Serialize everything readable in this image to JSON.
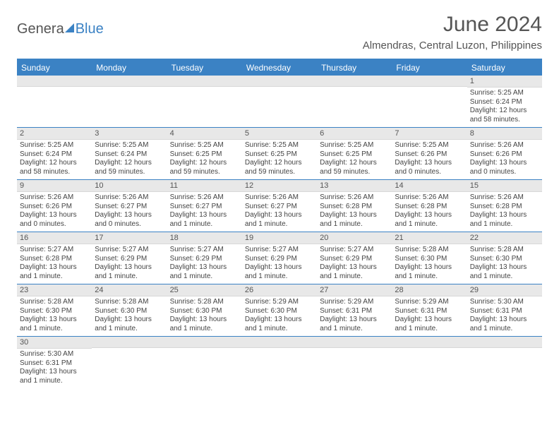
{
  "logo": {
    "part1": "Genera",
    "part2": "Blue"
  },
  "header": {
    "title": "June 2024",
    "location": "Almendras, Central Luzon, Philippines"
  },
  "colors": {
    "header_bg": "#3b82c4",
    "header_text": "#ffffff",
    "daynum_bg": "#e8e8e8",
    "page_bg": "#ffffff",
    "text": "#444444",
    "row_border": "#3b82c4"
  },
  "daysOfWeek": [
    "Sunday",
    "Monday",
    "Tuesday",
    "Wednesday",
    "Thursday",
    "Friday",
    "Saturday"
  ],
  "weeks": [
    [
      {
        "n": "",
        "lines": []
      },
      {
        "n": "",
        "lines": []
      },
      {
        "n": "",
        "lines": []
      },
      {
        "n": "",
        "lines": []
      },
      {
        "n": "",
        "lines": []
      },
      {
        "n": "",
        "lines": []
      },
      {
        "n": "1",
        "lines": [
          "Sunrise: 5:25 AM",
          "Sunset: 6:24 PM",
          "Daylight: 12 hours and 58 minutes."
        ]
      }
    ],
    [
      {
        "n": "2",
        "lines": [
          "Sunrise: 5:25 AM",
          "Sunset: 6:24 PM",
          "Daylight: 12 hours and 58 minutes."
        ]
      },
      {
        "n": "3",
        "lines": [
          "Sunrise: 5:25 AM",
          "Sunset: 6:24 PM",
          "Daylight: 12 hours and 59 minutes."
        ]
      },
      {
        "n": "4",
        "lines": [
          "Sunrise: 5:25 AM",
          "Sunset: 6:25 PM",
          "Daylight: 12 hours and 59 minutes."
        ]
      },
      {
        "n": "5",
        "lines": [
          "Sunrise: 5:25 AM",
          "Sunset: 6:25 PM",
          "Daylight: 12 hours and 59 minutes."
        ]
      },
      {
        "n": "6",
        "lines": [
          "Sunrise: 5:25 AM",
          "Sunset: 6:25 PM",
          "Daylight: 12 hours and 59 minutes."
        ]
      },
      {
        "n": "7",
        "lines": [
          "Sunrise: 5:25 AM",
          "Sunset: 6:26 PM",
          "Daylight: 13 hours and 0 minutes."
        ]
      },
      {
        "n": "8",
        "lines": [
          "Sunrise: 5:26 AM",
          "Sunset: 6:26 PM",
          "Daylight: 13 hours and 0 minutes."
        ]
      }
    ],
    [
      {
        "n": "9",
        "lines": [
          "Sunrise: 5:26 AM",
          "Sunset: 6:26 PM",
          "Daylight: 13 hours and 0 minutes."
        ]
      },
      {
        "n": "10",
        "lines": [
          "Sunrise: 5:26 AM",
          "Sunset: 6:27 PM",
          "Daylight: 13 hours and 0 minutes."
        ]
      },
      {
        "n": "11",
        "lines": [
          "Sunrise: 5:26 AM",
          "Sunset: 6:27 PM",
          "Daylight: 13 hours and 1 minute."
        ]
      },
      {
        "n": "12",
        "lines": [
          "Sunrise: 5:26 AM",
          "Sunset: 6:27 PM",
          "Daylight: 13 hours and 1 minute."
        ]
      },
      {
        "n": "13",
        "lines": [
          "Sunrise: 5:26 AM",
          "Sunset: 6:28 PM",
          "Daylight: 13 hours and 1 minute."
        ]
      },
      {
        "n": "14",
        "lines": [
          "Sunrise: 5:26 AM",
          "Sunset: 6:28 PM",
          "Daylight: 13 hours and 1 minute."
        ]
      },
      {
        "n": "15",
        "lines": [
          "Sunrise: 5:26 AM",
          "Sunset: 6:28 PM",
          "Daylight: 13 hours and 1 minute."
        ]
      }
    ],
    [
      {
        "n": "16",
        "lines": [
          "Sunrise: 5:27 AM",
          "Sunset: 6:28 PM",
          "Daylight: 13 hours and 1 minute."
        ]
      },
      {
        "n": "17",
        "lines": [
          "Sunrise: 5:27 AM",
          "Sunset: 6:29 PM",
          "Daylight: 13 hours and 1 minute."
        ]
      },
      {
        "n": "18",
        "lines": [
          "Sunrise: 5:27 AM",
          "Sunset: 6:29 PM",
          "Daylight: 13 hours and 1 minute."
        ]
      },
      {
        "n": "19",
        "lines": [
          "Sunrise: 5:27 AM",
          "Sunset: 6:29 PM",
          "Daylight: 13 hours and 1 minute."
        ]
      },
      {
        "n": "20",
        "lines": [
          "Sunrise: 5:27 AM",
          "Sunset: 6:29 PM",
          "Daylight: 13 hours and 1 minute."
        ]
      },
      {
        "n": "21",
        "lines": [
          "Sunrise: 5:28 AM",
          "Sunset: 6:30 PM",
          "Daylight: 13 hours and 1 minute."
        ]
      },
      {
        "n": "22",
        "lines": [
          "Sunrise: 5:28 AM",
          "Sunset: 6:30 PM",
          "Daylight: 13 hours and 1 minute."
        ]
      }
    ],
    [
      {
        "n": "23",
        "lines": [
          "Sunrise: 5:28 AM",
          "Sunset: 6:30 PM",
          "Daylight: 13 hours and 1 minute."
        ]
      },
      {
        "n": "24",
        "lines": [
          "Sunrise: 5:28 AM",
          "Sunset: 6:30 PM",
          "Daylight: 13 hours and 1 minute."
        ]
      },
      {
        "n": "25",
        "lines": [
          "Sunrise: 5:28 AM",
          "Sunset: 6:30 PM",
          "Daylight: 13 hours and 1 minute."
        ]
      },
      {
        "n": "26",
        "lines": [
          "Sunrise: 5:29 AM",
          "Sunset: 6:30 PM",
          "Daylight: 13 hours and 1 minute."
        ]
      },
      {
        "n": "27",
        "lines": [
          "Sunrise: 5:29 AM",
          "Sunset: 6:31 PM",
          "Daylight: 13 hours and 1 minute."
        ]
      },
      {
        "n": "28",
        "lines": [
          "Sunrise: 5:29 AM",
          "Sunset: 6:31 PM",
          "Daylight: 13 hours and 1 minute."
        ]
      },
      {
        "n": "29",
        "lines": [
          "Sunrise: 5:30 AM",
          "Sunset: 6:31 PM",
          "Daylight: 13 hours and 1 minute."
        ]
      }
    ],
    [
      {
        "n": "30",
        "lines": [
          "Sunrise: 5:30 AM",
          "Sunset: 6:31 PM",
          "Daylight: 13 hours and 1 minute."
        ]
      },
      {
        "n": "",
        "lines": []
      },
      {
        "n": "",
        "lines": []
      },
      {
        "n": "",
        "lines": []
      },
      {
        "n": "",
        "lines": []
      },
      {
        "n": "",
        "lines": []
      },
      {
        "n": "",
        "lines": []
      }
    ]
  ]
}
